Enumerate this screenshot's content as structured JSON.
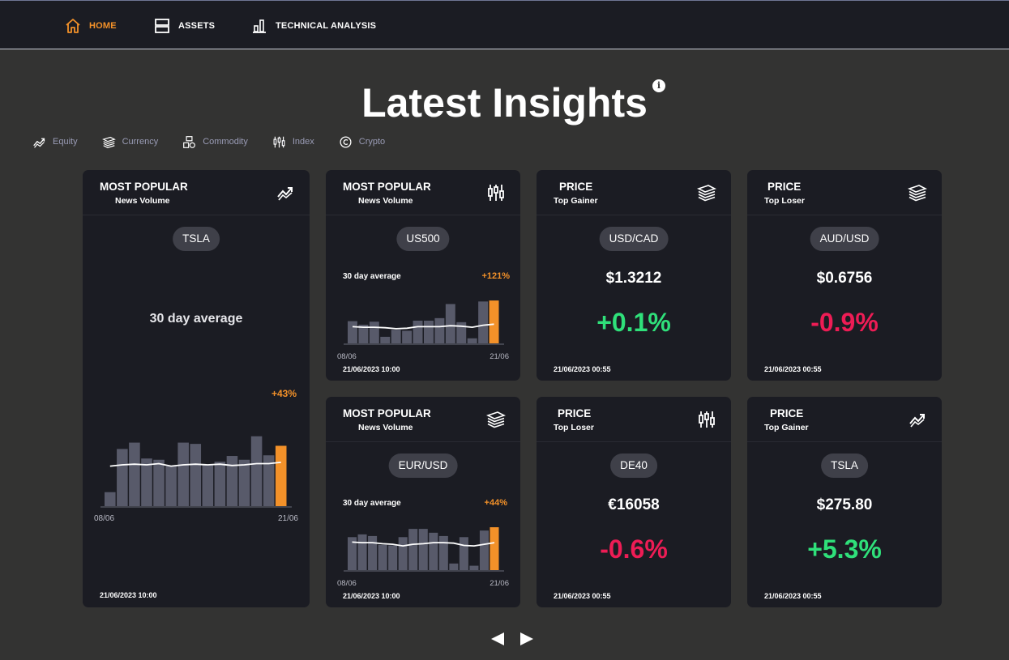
{
  "nav": {
    "items": [
      {
        "label": "HOME",
        "icon": "home-icon",
        "active": true
      },
      {
        "label": "ASSETS",
        "icon": "assets-icon"
      },
      {
        "label": "TECHNICAL ANALYSIS",
        "icon": "bar-chart-icon"
      }
    ]
  },
  "page": {
    "title": "Latest Insights",
    "info_icon": "i"
  },
  "filters": [
    {
      "label": "Equity",
      "icon": "trend-icon"
    },
    {
      "label": "Currency",
      "icon": "money-stack-icon"
    },
    {
      "label": "Commodity",
      "icon": "commodity-icon"
    },
    {
      "label": "Index",
      "icon": "candlestick-icon"
    },
    {
      "label": "Crypto",
      "icon": "crypto-icon"
    }
  ],
  "colors": {
    "accent": "#f39129",
    "card": "#1b1c23",
    "bar": "#585a6a",
    "up": "#2fe07a",
    "down": "#ee1c55",
    "background": "#333332"
  },
  "cards": {
    "tsla_popular": {
      "title": "MOST POPULAR",
      "subtitle": "News Volume",
      "icon": "trend-icon",
      "symbol": "TSLA",
      "avg_label": "30 day average",
      "avg_change": "+43%",
      "date_start": "08/06",
      "date_end": "21/06",
      "timestamp": "21/06/2023 10:00",
      "chart_data": {
        "type": "bar",
        "values": [
          2.2,
          9.0,
          10.0,
          7.5,
          7.3,
          6.3,
          10.0,
          9.8,
          6.5,
          7.0,
          7.9,
          7.3,
          11.0,
          8.0,
          9.5
        ],
        "average": [
          6.3,
          6.5,
          6.6,
          6.5,
          6.7,
          6.3,
          6.5,
          6.6,
          6.5,
          6.6,
          6.4,
          6.5,
          6.7,
          6.7,
          6.9
        ],
        "highlight_last": true
      }
    },
    "us500_popular": {
      "title": "MOST POPULAR",
      "subtitle": "News Volume",
      "icon": "candlestick-icon",
      "symbol": "US500",
      "avg_label": "30 day average",
      "avg_change": "+121%",
      "date_start": "08/06",
      "date_end": "21/06",
      "timestamp": "21/06/2023 10:00",
      "chart_data": {
        "type": "bar",
        "values": [
          4.4,
          3.7,
          4.3,
          1.3,
          2.7,
          2.5,
          4.5,
          4.5,
          5.0,
          7.8,
          4.2,
          1.0,
          8.3,
          8.5
        ],
        "average": [
          3.3,
          3.2,
          3.2,
          3.1,
          2.9,
          3.0,
          3.3,
          3.3,
          3.3,
          3.5,
          3.4,
          3.2,
          3.6,
          3.8
        ],
        "highlight_last": true
      }
    },
    "eurusd_popular": {
      "title": "MOST POPULAR",
      "subtitle": "News Volume",
      "icon": "money-stack-icon",
      "symbol": "EUR/USD",
      "avg_label": "30 day average",
      "avg_change": "+44%",
      "date_start": "08/06",
      "date_end": "21/06",
      "timestamp": "21/06/2023 10:00",
      "chart_data": {
        "type": "bar",
        "values": [
          6.0,
          6.5,
          6.2,
          4.6,
          4.5,
          6.0,
          7.5,
          7.5,
          6.8,
          6.2,
          1.2,
          6.0,
          0.8,
          7.2,
          7.8
        ],
        "average": [
          5.1,
          5.0,
          5.0,
          4.8,
          4.7,
          4.4,
          4.7,
          4.8,
          5.0,
          5.0,
          4.9,
          4.5,
          4.4,
          4.7,
          5.0
        ],
        "highlight_last": true
      }
    },
    "usdcad": {
      "title": "PRICE",
      "subtitle": "Top Gainer",
      "icon": "money-stack-icon",
      "symbol": "USD/CAD",
      "price": "$1.3212",
      "change": "+0.1%",
      "direction": "up",
      "timestamp": "21/06/2023 00:55"
    },
    "audusd": {
      "title": "PRICE",
      "subtitle": "Top Loser",
      "icon": "money-stack-icon",
      "symbol": "AUD/USD",
      "price": "$0.6756",
      "change": "-0.9%",
      "direction": "down",
      "timestamp": "21/06/2023 00:55"
    },
    "de40": {
      "title": "PRICE",
      "subtitle": "Top Loser",
      "icon": "candlestick-icon",
      "symbol": "DE40",
      "price": "€16058",
      "change": "-0.6%",
      "direction": "down",
      "timestamp": "21/06/2023 00:55"
    },
    "tsla_price": {
      "title": "PRICE",
      "subtitle": "Top Gainer",
      "icon": "trend-icon",
      "symbol": "TSLA",
      "price": "$275.80",
      "change": "+5.3%",
      "direction": "up",
      "timestamp": "21/06/2023 00:55"
    }
  },
  "pager": {
    "prev_icon": "triangle-left-icon",
    "next_icon": "triangle-right-icon"
  }
}
